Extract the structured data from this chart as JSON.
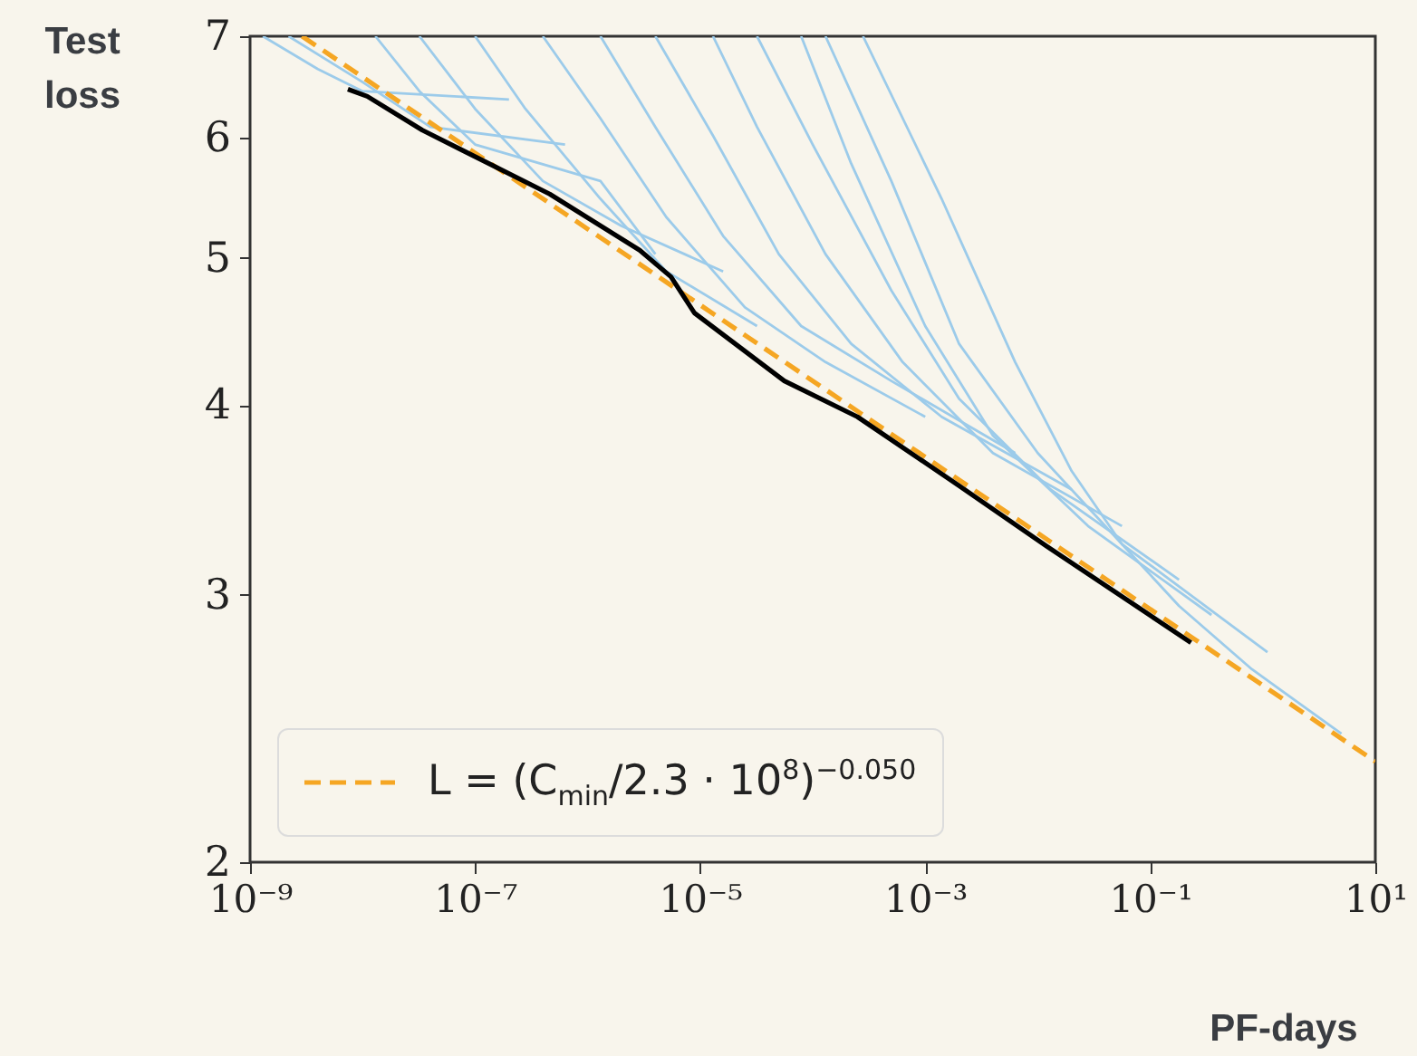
{
  "chart_data": {
    "type": "line",
    "xlabel": "PF-days",
    "ylabel": "Test loss",
    "log": "xy",
    "legend": "bottom left",
    "grid": false,
    "xlim": [
      1e-09,
      10
    ],
    "ylim": [
      2,
      7
    ],
    "xticks": [
      {
        "value": 1e-09,
        "label": "10⁻⁹"
      },
      {
        "value": 1e-07,
        "label": "10⁻⁷"
      },
      {
        "value": 1e-05,
        "label": "10⁻⁵"
      },
      {
        "value": 0.001,
        "label": "10⁻³"
      },
      {
        "value": 0.1,
        "label": "10⁻¹"
      },
      {
        "value": 10,
        "label": "10¹"
      }
    ],
    "yticks": [
      2,
      3,
      4,
      5,
      6,
      7
    ],
    "series": [
      {
        "color": "#9ccbea",
        "x": [
          1.3e-09,
          4e-09,
          1e-08,
          2e-07
        ],
        "values": [
          7.0,
          6.66,
          6.44,
          6.36
        ]
      },
      {
        "color": "#9ccbea",
        "x": [
          2.2e-09,
          1e-08,
          4e-08,
          6.3e-07
        ],
        "values": [
          7.0,
          6.53,
          6.1,
          5.94
        ]
      },
      {
        "color": "#9ccbea",
        "x": [
          1.3e-08,
          3.2e-08,
          1e-07,
          1.3e-06,
          4e-06
        ],
        "values": [
          7.0,
          6.44,
          5.94,
          5.62,
          5.03
        ]
      },
      {
        "color": "#9ccbea",
        "x": [
          3.2e-08,
          1e-07,
          4e-07,
          2e-06,
          1.6e-05
        ],
        "values": [
          7.0,
          6.27,
          5.62,
          5.25,
          4.9
        ]
      },
      {
        "color": "#9ccbea",
        "x": [
          1e-07,
          2.8e-07,
          1.3e-06,
          5e-06,
          3.2e-05
        ],
        "values": [
          7.0,
          6.27,
          5.47,
          4.9,
          4.51
        ]
      },
      {
        "color": "#9ccbea",
        "x": [
          4e-07,
          1.3e-06,
          5e-06,
          2.5e-05,
          0.00013,
          0.001
        ],
        "values": [
          7.0,
          6.18,
          5.32,
          4.64,
          4.27,
          3.93
        ]
      },
      {
        "color": "#9ccbea",
        "x": [
          1.3e-06,
          4e-06,
          1.6e-05,
          7.9e-05,
          0.0005,
          0.0063
        ],
        "values": [
          7.0,
          6.1,
          5.17,
          4.51,
          4.15,
          3.72
        ]
      },
      {
        "color": "#9ccbea",
        "x": [
          4e-06,
          1.3e-05,
          5e-05,
          0.00022,
          0.0014,
          0.02
        ],
        "values": [
          7.0,
          6.02,
          5.03,
          4.39,
          3.93,
          3.52
        ]
      },
      {
        "color": "#9ccbea",
        "x": [
          1.3e-05,
          3.2e-05,
          0.00013,
          0.00063,
          0.004,
          0.056
        ],
        "values": [
          7.0,
          6.1,
          5.03,
          4.27,
          3.72,
          3.33
        ]
      },
      {
        "color": "#9ccbea",
        "x": [
          3.2e-05,
          0.0001,
          0.0005,
          0.002,
          0.013,
          0.18
        ],
        "values": [
          7.0,
          5.94,
          4.76,
          4.04,
          3.52,
          3.07
        ]
      },
      {
        "color": "#9ccbea",
        "x": [
          7.9e-05,
          0.00022,
          0.001,
          0.004,
          0.028,
          0.35
        ],
        "values": [
          7.0,
          5.77,
          4.51,
          3.82,
          3.33,
          2.91
        ]
      },
      {
        "color": "#9ccbea",
        "x": [
          0.00013,
          0.0005,
          0.002,
          0.01,
          0.056,
          1.1
        ],
        "values": [
          7.0,
          5.62,
          4.39,
          3.72,
          3.24,
          2.75
        ]
      },
      {
        "color": "#9ccbea",
        "x": [
          0.00028,
          0.0014,
          0.0063,
          0.02,
          0.056,
          0.18,
          0.8,
          5
        ],
        "values": [
          7.0,
          5.47,
          4.27,
          3.62,
          3.24,
          2.95,
          2.68,
          2.43
        ]
      },
      {
        "name": "L = (C$_{min}$/2.3 · 10$^{8}$)$^{−0.050}$",
        "color": "#f5a623",
        "line_style": "dashed",
        "x": [
          2.9e-09,
          0.0001,
          10
        ],
        "values": [
          7.0,
          4.15,
          2.33
        ]
      },
      {
        "color": "#000000",
        "x": [
          7.4e-09,
          1.1e-08,
          3.4e-08,
          4.6e-07,
          2.9e-06,
          5.5e-06,
          8.9e-06,
          5.6e-05,
          0.00025,
          0.002,
          0.012,
          0.23
        ],
        "values": [
          6.46,
          6.39,
          6.07,
          5.51,
          5.06,
          4.86,
          4.6,
          4.15,
          3.93,
          3.54,
          3.23,
          2.79
        ]
      }
    ]
  }
}
